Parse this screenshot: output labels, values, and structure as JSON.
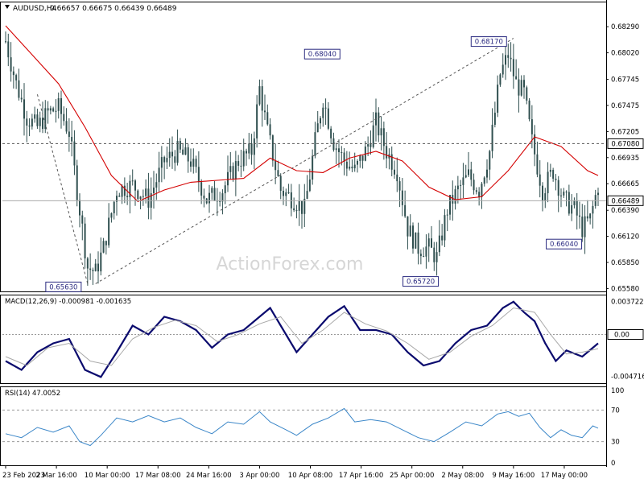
{
  "header": {
    "symbol_label": "AUDUSD,H4",
    "ohlc": "0.66657 0.66675 0.66439 0.66489"
  },
  "watermark": "ActionForex.com",
  "colors": {
    "candle": "#2f4f4f",
    "ema": "#d40000",
    "macd_line": "#0b0b6e",
    "macd_signal": "#a9a9a9",
    "rsi": "#3a86c8",
    "trendline": "#555555",
    "price_label_bg": "#ffffff",
    "price_label_border": "#2a2a80"
  },
  "chart_data": [
    {
      "type": "line",
      "title": "AUDUSD,H4",
      "subtype": "candlestick with moving average",
      "x_tick_labels": [
        "23 Feb 2023",
        "2 Mar 16:00",
        "10 Mar 00:00",
        "17 Mar 08:00",
        "24 Mar 16:00",
        "3 Apr 00:00",
        "10 Apr 08:00",
        "17 Apr 16:00",
        "25 Apr 00:00",
        "2 May 08:00",
        "9 May 16:00",
        "17 May 00:00"
      ],
      "y_tick_labels": [
        "0.68290",
        "0.68020",
        "0.67745",
        "0.67475",
        "0.67205",
        "0.66935",
        "0.66665",
        "0.66390",
        "0.66120",
        "0.65850",
        "0.65580"
      ],
      "ylim": [
        0.6555,
        0.6855
      ],
      "price_series": [
        {
          "x": 0,
          "y": 0.6814
        },
        {
          "x": 4,
          "y": 0.677
        },
        {
          "x": 8,
          "y": 0.6735
        },
        {
          "x": 12,
          "y": 0.6725
        },
        {
          "x": 16,
          "y": 0.674
        },
        {
          "x": 20,
          "y": 0.6745
        },
        {
          "x": 24,
          "y": 0.672
        },
        {
          "x": 28,
          "y": 0.664
        },
        {
          "x": 31,
          "y": 0.658
        },
        {
          "x": 34,
          "y": 0.6575
        },
        {
          "x": 37,
          "y": 0.66
        },
        {
          "x": 42,
          "y": 0.666
        },
        {
          "x": 48,
          "y": 0.6665
        },
        {
          "x": 54,
          "y": 0.665
        },
        {
          "x": 60,
          "y": 0.669
        },
        {
          "x": 65,
          "y": 0.67
        },
        {
          "x": 70,
          "y": 0.669
        },
        {
          "x": 76,
          "y": 0.665
        },
        {
          "x": 82,
          "y": 0.666
        },
        {
          "x": 88,
          "y": 0.669
        },
        {
          "x": 93,
          "y": 0.67
        },
        {
          "x": 96,
          "y": 0.6765
        },
        {
          "x": 99,
          "y": 0.672
        },
        {
          "x": 104,
          "y": 0.666
        },
        {
          "x": 109,
          "y": 0.665
        },
        {
          "x": 113,
          "y": 0.664
        },
        {
          "x": 117,
          "y": 0.671
        },
        {
          "x": 120,
          "y": 0.6755
        },
        {
          "x": 124,
          "y": 0.671
        },
        {
          "x": 128,
          "y": 0.669
        },
        {
          "x": 132,
          "y": 0.668
        },
        {
          "x": 136,
          "y": 0.67
        },
        {
          "x": 140,
          "y": 0.673
        },
        {
          "x": 144,
          "y": 0.67
        },
        {
          "x": 148,
          "y": 0.668
        },
        {
          "x": 152,
          "y": 0.662
        },
        {
          "x": 156,
          "y": 0.66
        },
        {
          "x": 160,
          "y": 0.66
        },
        {
          "x": 163,
          "y": 0.659
        },
        {
          "x": 167,
          "y": 0.664
        },
        {
          "x": 171,
          "y": 0.666
        },
        {
          "x": 175,
          "y": 0.6675
        },
        {
          "x": 179,
          "y": 0.666
        },
        {
          "x": 183,
          "y": 0.67
        },
        {
          "x": 187,
          "y": 0.678
        },
        {
          "x": 190,
          "y": 0.68
        },
        {
          "x": 193,
          "y": 0.677
        },
        {
          "x": 196,
          "y": 0.676
        },
        {
          "x": 199,
          "y": 0.671
        },
        {
          "x": 203,
          "y": 0.666
        },
        {
          "x": 207,
          "y": 0.668
        },
        {
          "x": 211,
          "y": 0.665
        },
        {
          "x": 215,
          "y": 0.664
        },
        {
          "x": 218,
          "y": 0.662
        },
        {
          "x": 221,
          "y": 0.663
        },
        {
          "x": 224,
          "y": 0.6665
        }
      ],
      "ema_series": [
        {
          "x": 0,
          "y": 0.683
        },
        {
          "x": 10,
          "y": 0.68
        },
        {
          "x": 20,
          "y": 0.677
        },
        {
          "x": 30,
          "y": 0.6725
        },
        {
          "x": 40,
          "y": 0.6675
        },
        {
          "x": 50,
          "y": 0.6648
        },
        {
          "x": 60,
          "y": 0.666
        },
        {
          "x": 70,
          "y": 0.6668
        },
        {
          "x": 80,
          "y": 0.667
        },
        {
          "x": 90,
          "y": 0.6672
        },
        {
          "x": 100,
          "y": 0.6693
        },
        {
          "x": 110,
          "y": 0.668
        },
        {
          "x": 120,
          "y": 0.6678
        },
        {
          "x": 130,
          "y": 0.6693
        },
        {
          "x": 140,
          "y": 0.67
        },
        {
          "x": 150,
          "y": 0.669
        },
        {
          "x": 160,
          "y": 0.6663
        },
        {
          "x": 170,
          "y": 0.665
        },
        {
          "x": 180,
          "y": 0.6653
        },
        {
          "x": 190,
          "y": 0.668
        },
        {
          "x": 200,
          "y": 0.6715
        },
        {
          "x": 210,
          "y": 0.6705
        },
        {
          "x": 220,
          "y": 0.668
        },
        {
          "x": 224,
          "y": 0.6675
        }
      ],
      "trendlines": [
        {
          "from": {
            "x": 12,
            "y": 0.6759
          },
          "to": {
            "x": 31,
            "y": 0.6563
          }
        },
        {
          "from": {
            "x": 34,
            "y": 0.6563
          },
          "to": {
            "x": 192,
            "y": 0.6817
          }
        }
      ],
      "horizontal_lines": [
        {
          "y": 0.6708,
          "style": "dashed",
          "label": "0.67080"
        },
        {
          "y": 0.66489,
          "style": "solid",
          "label": "0.66489"
        }
      ],
      "annotations": [
        {
          "text": "0.65630",
          "x": 31,
          "y": 0.6563
        },
        {
          "text": "0.68040",
          "x": 127,
          "y": 0.6804
        },
        {
          "text": "0.68170",
          "x": 190,
          "y": 0.6817
        },
        {
          "text": "0.65720",
          "x": 163,
          "y": 0.6572
        },
        {
          "text": "0.66040",
          "x": 219,
          "y": 0.6604
        }
      ]
    },
    {
      "type": "line",
      "title": "MACD(12,26,9) -0.000981 -0.001635",
      "y_tick_labels": [
        "0.003722",
        "0.00",
        "-0.004716"
      ],
      "ylim": [
        -0.0055,
        0.0045
      ],
      "zero_line": true,
      "series": [
        {
          "name": "MACD",
          "values": [
            {
              "x": 0,
              "y": -0.003
            },
            {
              "x": 6,
              "y": -0.004
            },
            {
              "x": 12,
              "y": -0.002
            },
            {
              "x": 18,
              "y": -0.001
            },
            {
              "x": 24,
              "y": -0.0005
            },
            {
              "x": 30,
              "y": -0.004
            },
            {
              "x": 36,
              "y": -0.0048
            },
            {
              "x": 42,
              "y": -0.002
            },
            {
              "x": 48,
              "y": 0.001
            },
            {
              "x": 54,
              "y": 0.0
            },
            {
              "x": 60,
              "y": 0.002
            },
            {
              "x": 66,
              "y": 0.0015
            },
            {
              "x": 72,
              "y": 0.0005
            },
            {
              "x": 78,
              "y": -0.0015
            },
            {
              "x": 84,
              "y": 0.0
            },
            {
              "x": 90,
              "y": 0.0005
            },
            {
              "x": 96,
              "y": 0.002
            },
            {
              "x": 100,
              "y": 0.003
            },
            {
              "x": 104,
              "y": 0.001
            },
            {
              "x": 110,
              "y": -0.002
            },
            {
              "x": 116,
              "y": 0.0
            },
            {
              "x": 122,
              "y": 0.002
            },
            {
              "x": 128,
              "y": 0.0032
            },
            {
              "x": 134,
              "y": 0.0005
            },
            {
              "x": 140,
              "y": 0.0005
            },
            {
              "x": 146,
              "y": 0.0
            },
            {
              "x": 152,
              "y": -0.002
            },
            {
              "x": 158,
              "y": -0.0035
            },
            {
              "x": 164,
              "y": -0.003
            },
            {
              "x": 170,
              "y": -0.001
            },
            {
              "x": 176,
              "y": 0.0005
            },
            {
              "x": 182,
              "y": 0.001
            },
            {
              "x": 188,
              "y": 0.003
            },
            {
              "x": 192,
              "y": 0.0037
            },
            {
              "x": 196,
              "y": 0.0025
            },
            {
              "x": 200,
              "y": 0.0015
            },
            {
              "x": 204,
              "y": -0.001
            },
            {
              "x": 208,
              "y": -0.003
            },
            {
              "x": 212,
              "y": -0.0018
            },
            {
              "x": 218,
              "y": -0.0025
            },
            {
              "x": 224,
              "y": -0.001
            }
          ]
        },
        {
          "name": "Signal",
          "values": [
            {
              "x": 0,
              "y": -0.0025
            },
            {
              "x": 8,
              "y": -0.0035
            },
            {
              "x": 16,
              "y": -0.0015
            },
            {
              "x": 24,
              "y": -0.001
            },
            {
              "x": 32,
              "y": -0.003
            },
            {
              "x": 40,
              "y": -0.0035
            },
            {
              "x": 48,
              "y": -0.0005
            },
            {
              "x": 56,
              "y": 0.0008
            },
            {
              "x": 64,
              "y": 0.0016
            },
            {
              "x": 72,
              "y": 0.001
            },
            {
              "x": 80,
              "y": -0.0008
            },
            {
              "x": 88,
              "y": 0.0
            },
            {
              "x": 96,
              "y": 0.0012
            },
            {
              "x": 104,
              "y": 0.002
            },
            {
              "x": 112,
              "y": -0.001
            },
            {
              "x": 120,
              "y": 0.0005
            },
            {
              "x": 128,
              "y": 0.0025
            },
            {
              "x": 136,
              "y": 0.0012
            },
            {
              "x": 144,
              "y": 0.0004
            },
            {
              "x": 152,
              "y": -0.001
            },
            {
              "x": 160,
              "y": -0.0028
            },
            {
              "x": 168,
              "y": -0.002
            },
            {
              "x": 176,
              "y": -0.0002
            },
            {
              "x": 184,
              "y": 0.001
            },
            {
              "x": 192,
              "y": 0.003
            },
            {
              "x": 200,
              "y": 0.0025
            },
            {
              "x": 206,
              "y": 0.0
            },
            {
              "x": 212,
              "y": -0.0022
            },
            {
              "x": 218,
              "y": -0.002
            },
            {
              "x": 224,
              "y": -0.0016
            }
          ]
        }
      ]
    },
    {
      "type": "line",
      "title": "RSI(14) 47.0052",
      "y_tick_labels": [
        "100",
        "70",
        "30",
        "0"
      ],
      "ylim": [
        0,
        100
      ],
      "reference_levels": [
        70,
        30
      ],
      "series": [
        {
          "name": "RSI",
          "values": [
            {
              "x": 0,
              "y": 40
            },
            {
              "x": 6,
              "y": 35
            },
            {
              "x": 12,
              "y": 48
            },
            {
              "x": 18,
              "y": 42
            },
            {
              "x": 24,
              "y": 50
            },
            {
              "x": 28,
              "y": 30
            },
            {
              "x": 32,
              "y": 25
            },
            {
              "x": 36,
              "y": 38
            },
            {
              "x": 42,
              "y": 60
            },
            {
              "x": 48,
              "y": 55
            },
            {
              "x": 54,
              "y": 63
            },
            {
              "x": 60,
              "y": 55
            },
            {
              "x": 66,
              "y": 60
            },
            {
              "x": 72,
              "y": 48
            },
            {
              "x": 78,
              "y": 40
            },
            {
              "x": 84,
              "y": 55
            },
            {
              "x": 90,
              "y": 52
            },
            {
              "x": 96,
              "y": 68
            },
            {
              "x": 100,
              "y": 55
            },
            {
              "x": 106,
              "y": 45
            },
            {
              "x": 110,
              "y": 38
            },
            {
              "x": 116,
              "y": 52
            },
            {
              "x": 122,
              "y": 60
            },
            {
              "x": 128,
              "y": 72
            },
            {
              "x": 132,
              "y": 55
            },
            {
              "x": 138,
              "y": 58
            },
            {
              "x": 144,
              "y": 55
            },
            {
              "x": 150,
              "y": 45
            },
            {
              "x": 156,
              "y": 35
            },
            {
              "x": 162,
              "y": 30
            },
            {
              "x": 168,
              "y": 42
            },
            {
              "x": 174,
              "y": 55
            },
            {
              "x": 180,
              "y": 50
            },
            {
              "x": 186,
              "y": 65
            },
            {
              "x": 190,
              "y": 68
            },
            {
              "x": 194,
              "y": 62
            },
            {
              "x": 198,
              "y": 66
            },
            {
              "x": 202,
              "y": 48
            },
            {
              "x": 206,
              "y": 35
            },
            {
              "x": 210,
              "y": 45
            },
            {
              "x": 214,
              "y": 38
            },
            {
              "x": 218,
              "y": 35
            },
            {
              "x": 222,
              "y": 50
            },
            {
              "x": 224,
              "y": 47
            }
          ]
        }
      ]
    }
  ]
}
